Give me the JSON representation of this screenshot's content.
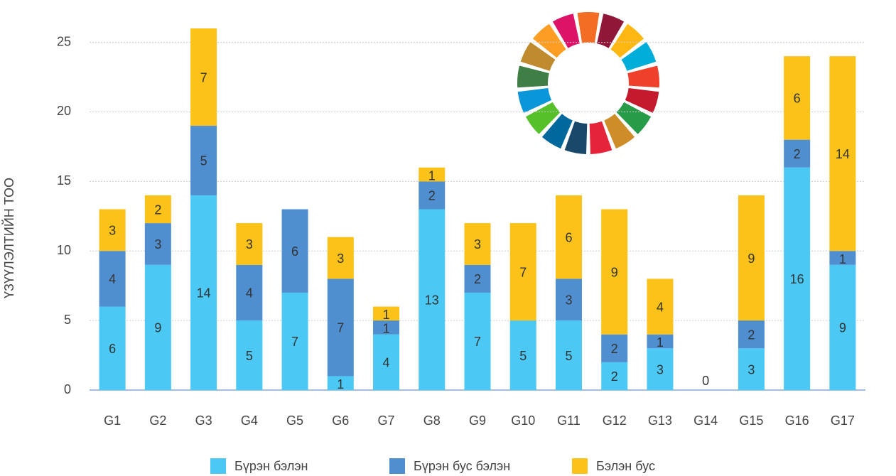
{
  "chart_data": {
    "type": "bar",
    "stacked": true,
    "y_label": "ҮЗҮҮЛЭЛТИЙН ТОО",
    "categories": [
      "G1",
      "G2",
      "G3",
      "G4",
      "G5",
      "G6",
      "G7",
      "G8",
      "G9",
      "G10",
      "G11",
      "G12",
      "G13",
      "G14",
      "G15",
      "G16",
      "G17"
    ],
    "series": [
      {
        "name": "Бүрэн бэлэн",
        "color": "#4bc8f4",
        "values": [
          6,
          9,
          14,
          5,
          7,
          1,
          4,
          13,
          7,
          5,
          5,
          2,
          3,
          0,
          3,
          16,
          9
        ]
      },
      {
        "name": "Бүрэн бус бэлэн",
        "color": "#4f8fd0",
        "values": [
          4,
          3,
          5,
          4,
          6,
          7,
          1,
          2,
          2,
          0,
          3,
          2,
          1,
          0,
          2,
          2,
          1
        ]
      },
      {
        "name": "Бэлэн бус",
        "color": "#fbc21a",
        "values": [
          3,
          2,
          7,
          3,
          0,
          3,
          1,
          1,
          3,
          7,
          6,
          9,
          4,
          0,
          9,
          6,
          14
        ]
      }
    ],
    "ylim": [
      0,
      26
    ],
    "yticks": [
      0,
      5,
      10,
      15,
      20,
      25
    ],
    "grid": true,
    "legend": "bottom"
  }
}
